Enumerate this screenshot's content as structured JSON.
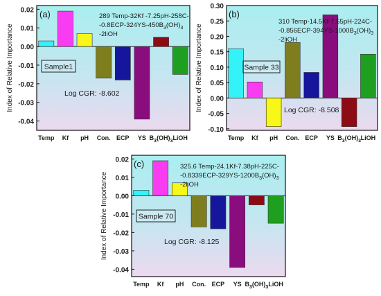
{
  "colors": {
    "bg_top": "#a9eef0",
    "bg_bottom": "#ecd9ef",
    "bars": [
      "#33f3f8",
      "#f93cf2",
      "#f7f71a",
      "#7e7e1e",
      "#16169c",
      "#8a0d7e",
      "#8c0b14",
      "#1f9f1f"
    ]
  },
  "chart_data": [
    {
      "type": "bar",
      "panel_label": "(a)",
      "categories": [
        "Temp",
        "Kf",
        "pH",
        "Con.",
        "ECP",
        "YS",
        "B3(OH)3",
        "LiOH"
      ],
      "values": [
        0.003,
        0.019,
        0.007,
        -0.017,
        -0.018,
        -0.039,
        0.005,
        -0.015
      ],
      "ylim": [
        -0.045,
        0.022
      ],
      "yticks": [
        "0.02",
        "0.01",
        "0.00",
        "-0.01",
        "-0.02",
        "-0.03",
        "-0.04"
      ],
      "ytick_values": [
        0.02,
        0.01,
        0.0,
        -0.01,
        -0.02,
        -0.03,
        -0.04
      ],
      "ylabel": "Index of Relative Importance",
      "annotation_lines": [
        "289 Temp-32Kf -7.25pH-258C-",
        "-0.8ECP-324YS-450B3(OH)3",
        "-2liOH"
      ],
      "sample_label": "Sample1",
      "cgr_label": "Log CGR: -8.602"
    },
    {
      "type": "bar",
      "panel_label": "(b)",
      "categories": [
        "Temp",
        "Kf",
        "pH",
        "Con.",
        "ECP",
        "YS",
        "B3(OH)3",
        "LiOH"
      ],
      "values": [
        0.16,
        0.052,
        -0.093,
        0.18,
        0.083,
        0.27,
        -0.093,
        0.142
      ],
      "ylim": [
        -0.105,
        0.3
      ],
      "yticks": [
        "0.30",
        "0.25",
        "0.20",
        "0.15",
        "0.10",
        "0.05",
        "0.00",
        "-0.05",
        "-0.10"
      ],
      "ytick_values": [
        0.3,
        0.25,
        0.2,
        0.15,
        0.1,
        0.05,
        0.0,
        -0.05,
        -0.1
      ],
      "ylabel": "Index of Relative Importance",
      "annotation_lines": [
        "310 Temp-14.5Kf-7.55pH-224C-",
        "-0.856ECP-394YS-1000B3(OH)3",
        "-2liOH"
      ],
      "sample_label": "Sample 33",
      "cgr_label": "Log CGR: -8.508"
    },
    {
      "type": "bar",
      "panel_label": "(c)",
      "categories": [
        "Temp",
        "Kf",
        "pH",
        "Con.",
        "ECP",
        "YS",
        "B3(OH)3",
        "LiOH"
      ],
      "values": [
        0.003,
        0.019,
        0.007,
        -0.017,
        -0.018,
        -0.039,
        -0.005,
        -0.015
      ],
      "ylim": [
        -0.044,
        0.022
      ],
      "yticks": [
        "0.02",
        "0.01",
        "0.00",
        "-0.01",
        "-0.02",
        "-0.03",
        "-0.04"
      ],
      "ytick_values": [
        0.02,
        0.01,
        0.0,
        -0.01,
        -0.02,
        -0.03,
        -0.04
      ],
      "ylabel": "Index of Relative Importance",
      "annotation_lines": [
        "325.6 Temp-24.1Kf-7.38pH-225C-",
        "-0.8339ECP-329YS-1200B3(OH)3",
        "-2liOH"
      ],
      "sample_label": "Sample 70",
      "cgr_label": "Log CGR: -8.125"
    }
  ]
}
